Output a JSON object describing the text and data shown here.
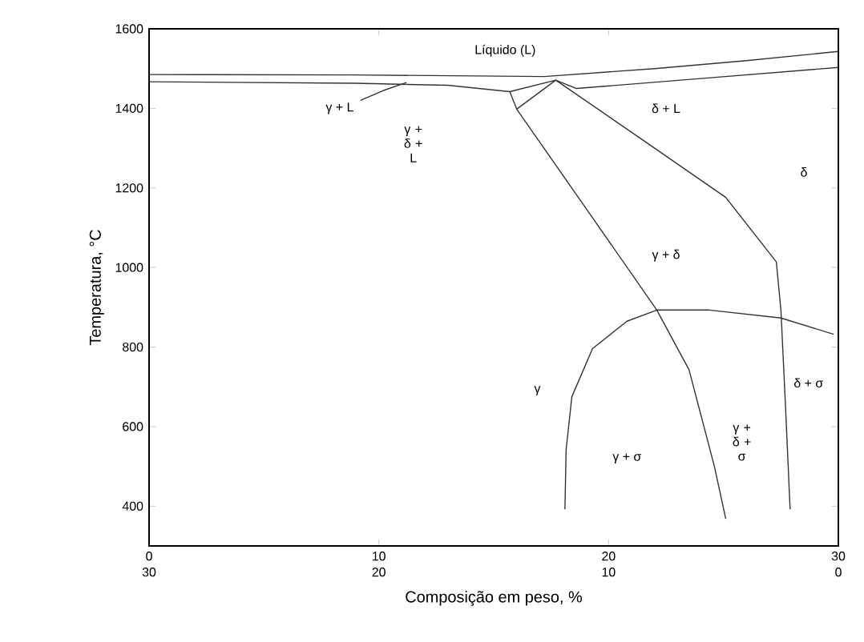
{
  "chart_data": {
    "type": "line",
    "xlabel": "Composição em peso, %",
    "ylabel": "Temperatura, °C",
    "xlim": [
      0,
      30
    ],
    "ylim": [
      300,
      1600
    ],
    "xticks": [
      0,
      10,
      20,
      30
    ],
    "x2lim": [
      30,
      0
    ],
    "x2ticks": [
      30,
      20,
      10,
      0
    ],
    "yticks": [
      400,
      600,
      800,
      1000,
      1200,
      1400,
      1600
    ],
    "marker": "none",
    "line_style": "solid",
    "grid": false,
    "series": [
      {
        "color": "#333333",
        "x": [
          0,
          9,
          17.2,
          22,
          26,
          30
        ],
        "values": [
          1485,
          1484,
          1480,
          1500,
          1520,
          1543
        ]
      },
      {
        "color": "#333333",
        "x": [
          0,
          9,
          13,
          15.7,
          16.0,
          19.0,
          22.1,
          23.5,
          24.6,
          25.1
        ],
        "values": [
          1467,
          1463,
          1458,
          1442,
          1398,
          1150,
          893,
          743,
          501,
          368
        ]
      },
      {
        "color": "#333333",
        "x": [
          9.2,
          10.2,
          11.2
        ],
        "values": [
          1420,
          1445,
          1465
        ]
      },
      {
        "color": "#333333",
        "x": [
          17.7,
          18.6,
          24,
          30
        ],
        "values": [
          1471,
          1450,
          1475,
          1503
        ]
      },
      {
        "color": "#333333",
        "x": [
          15.7,
          17.7,
          16.0
        ],
        "values": [
          1442,
          1471,
          1398
        ]
      },
      {
        "color": "#333333",
        "x": [
          17.7,
          21.5,
          25.1,
          27.3,
          27.5,
          27.7,
          27.9
        ],
        "values": [
          1471,
          1320,
          1176,
          1014,
          893,
          650,
          392
        ]
      },
      {
        "color": "#333333",
        "x": [
          18.1,
          18.15,
          18.4,
          19.3,
          20.8,
          22.1,
          24.4,
          27.5,
          29.8
        ],
        "values": [
          392,
          541,
          675,
          796,
          865,
          893,
          893,
          873,
          832
        ]
      }
    ],
    "annotations": [
      "Líquido (L)",
      "γ + L",
      "γ + δ + L",
      "δ + L",
      "δ",
      "γ + δ",
      "γ",
      "γ + σ",
      "γ + δ + σ",
      "δ + σ"
    ]
  }
}
